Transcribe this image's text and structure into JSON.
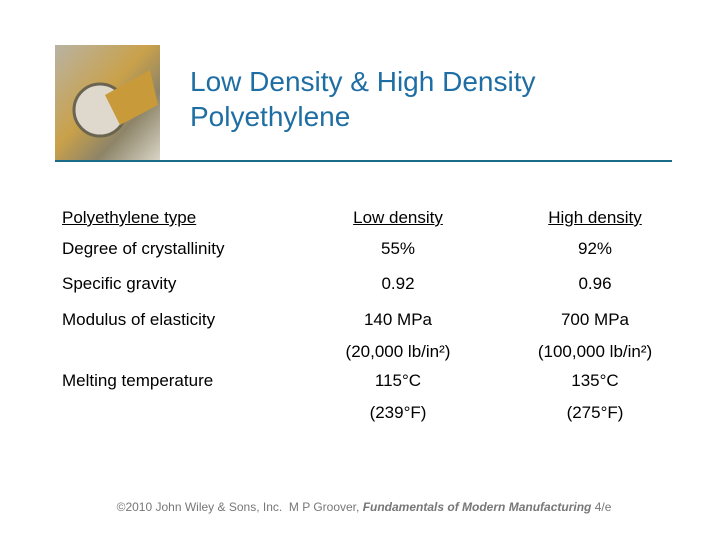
{
  "header": {
    "title_lines": [
      "Low Density & High Density",
      "Polyethylene"
    ]
  },
  "table": {
    "header": [
      "Polyethylene type",
      "Low density",
      "High density"
    ],
    "rows": [
      [
        [
          "Degree of crystallinity"
        ],
        [
          "55%"
        ],
        [
          "92%"
        ]
      ],
      [
        [
          "Specific gravity"
        ],
        [
          "0.92"
        ],
        [
          "0.96"
        ]
      ],
      [
        [
          "Modulus of elasticity"
        ],
        [
          "140 MPa",
          "(20,000 lb/in²)"
        ],
        [
          "700 MPa",
          "(100,000 lb/in²)"
        ]
      ],
      [
        [
          "Melting temperature"
        ],
        [
          "115°C",
          "(239°F)"
        ],
        [
          "135°C",
          "(275°F)"
        ]
      ]
    ]
  },
  "footer": {
    "text": "©2010 John Wiley & Sons, Inc.  M P Groover,",
    "book": "Fundamentals of Modern Manufacturing",
    "edition": "4/e"
  }
}
